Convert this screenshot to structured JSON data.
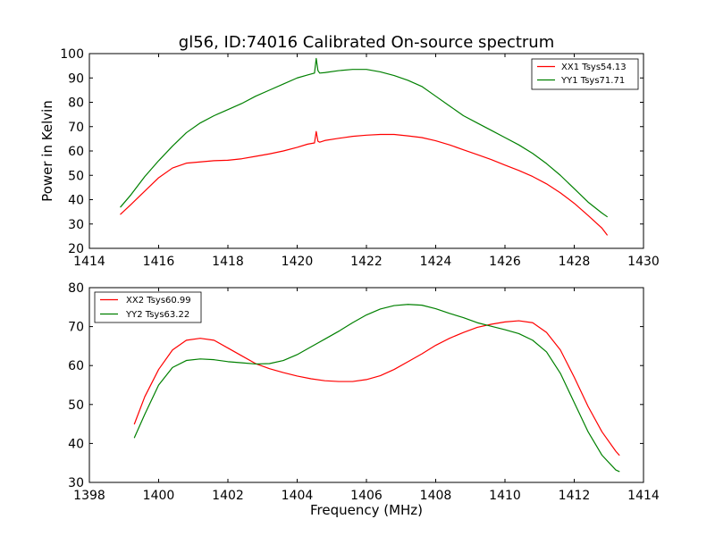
{
  "chart_data": [
    {
      "type": "line",
      "title": "gl56, ID:74016 Calibrated On-source spectrum",
      "xlabel": "",
      "ylabel": "Power in Kelvin",
      "xlim": [
        1414,
        1430
      ],
      "ylim": [
        20,
        100
      ],
      "xticks": [
        1414,
        1416,
        1418,
        1420,
        1422,
        1424,
        1426,
        1428,
        1430
      ],
      "yticks": [
        20,
        30,
        40,
        50,
        60,
        70,
        80,
        90,
        100
      ],
      "legend_position": "top-right",
      "series": [
        {
          "name": "XX1 Tsys54.13",
          "color": "#ff0000",
          "x": [
            1414.9,
            1415.2,
            1415.6,
            1416.0,
            1416.4,
            1416.8,
            1417.2,
            1417.6,
            1418.0,
            1418.4,
            1418.8,
            1419.2,
            1419.6,
            1420.0,
            1420.3,
            1420.5,
            1420.55,
            1420.6,
            1420.65,
            1420.8,
            1421.2,
            1421.6,
            1422.0,
            1422.4,
            1422.8,
            1423.2,
            1423.6,
            1424.0,
            1424.4,
            1424.8,
            1425.2,
            1425.6,
            1426.0,
            1426.4,
            1426.8,
            1427.2,
            1427.6,
            1428.0,
            1428.4,
            1428.8,
            1428.95
          ],
          "y": [
            34,
            38,
            43.5,
            49,
            53,
            55,
            55.5,
            56,
            56.2,
            56.8,
            57.8,
            58.8,
            60,
            61.5,
            62.8,
            63.3,
            68,
            64,
            63.6,
            64.3,
            65.2,
            66,
            66.5,
            66.8,
            66.8,
            66.2,
            65.5,
            64.2,
            62.5,
            60.5,
            58.5,
            56.5,
            54.2,
            52,
            49.5,
            46.5,
            42.8,
            38.5,
            33.5,
            28.3,
            25.5
          ]
        },
        {
          "name": "YY1 Tsys71.71",
          "color": "#008000",
          "x": [
            1414.9,
            1415.2,
            1415.6,
            1416.0,
            1416.4,
            1416.8,
            1417.2,
            1417.6,
            1418.0,
            1418.4,
            1418.8,
            1419.2,
            1419.6,
            1420.0,
            1420.3,
            1420.5,
            1420.55,
            1420.6,
            1420.65,
            1420.8,
            1421.2,
            1421.6,
            1422.0,
            1422.4,
            1422.8,
            1423.2,
            1423.6,
            1424.0,
            1424.4,
            1424.8,
            1425.2,
            1425.6,
            1426.0,
            1426.4,
            1426.8,
            1427.2,
            1427.6,
            1428.0,
            1428.4,
            1428.8,
            1428.95
          ],
          "y": [
            37,
            42,
            49.5,
            56,
            62,
            67.5,
            71.5,
            74.5,
            77,
            79.5,
            82.5,
            85,
            87.5,
            90,
            91.2,
            92,
            98,
            93,
            92,
            92.2,
            93,
            93.5,
            93.5,
            92.5,
            91,
            89,
            86.5,
            82.5,
            78.5,
            74.5,
            71.5,
            68.5,
            65.5,
            62.5,
            59,
            54.8,
            50,
            44.5,
            39,
            34.5,
            33
          ]
        }
      ]
    },
    {
      "type": "line",
      "title": "",
      "xlabel": "Frequency (MHz)",
      "ylabel": "",
      "xlim": [
        1398,
        1414
      ],
      "ylim": [
        30,
        80
      ],
      "xticks": [
        1398,
        1400,
        1402,
        1404,
        1406,
        1408,
        1410,
        1412,
        1414
      ],
      "yticks": [
        30,
        40,
        50,
        60,
        70,
        80
      ],
      "legend_position": "top-left",
      "series": [
        {
          "name": "XX2 Tsys60.99",
          "color": "#ff0000",
          "x": [
            1399.3,
            1399.6,
            1400.0,
            1400.4,
            1400.8,
            1401.2,
            1401.6,
            1402.0,
            1402.4,
            1402.8,
            1403.2,
            1403.6,
            1404.0,
            1404.4,
            1404.8,
            1405.2,
            1405.6,
            1406.0,
            1406.4,
            1406.8,
            1407.2,
            1407.6,
            1408.0,
            1408.4,
            1408.8,
            1409.2,
            1409.6,
            1410.0,
            1410.4,
            1410.8,
            1411.2,
            1411.6,
            1412.0,
            1412.4,
            1412.8,
            1413.2,
            1413.3
          ],
          "y": [
            45,
            52,
            59,
            64,
            66.5,
            67,
            66.5,
            64.5,
            62.5,
            60.5,
            59.2,
            58.2,
            57.3,
            56.6,
            56.1,
            55.9,
            55.9,
            56.4,
            57.4,
            59,
            61,
            63,
            65.2,
            67,
            68.5,
            69.8,
            70.6,
            71.2,
            71.5,
            71,
            68.5,
            64,
            57,
            49.5,
            43,
            38,
            37
          ]
        },
        {
          "name": "YY2 Tsys63.22",
          "color": "#008000",
          "x": [
            1399.3,
            1399.6,
            1400.0,
            1400.4,
            1400.8,
            1401.2,
            1401.6,
            1402.0,
            1402.4,
            1402.8,
            1403.2,
            1403.6,
            1404.0,
            1404.4,
            1404.8,
            1405.2,
            1405.6,
            1406.0,
            1406.4,
            1406.8,
            1407.2,
            1407.6,
            1408.0,
            1408.4,
            1408.8,
            1409.2,
            1409.6,
            1410.0,
            1410.4,
            1410.8,
            1411.2,
            1411.6,
            1412.0,
            1412.4,
            1412.8,
            1413.2,
            1413.3
          ],
          "y": [
            41.5,
            47.5,
            55,
            59.5,
            61.3,
            61.7,
            61.5,
            61,
            60.7,
            60.4,
            60.5,
            61.3,
            62.8,
            64.8,
            66.8,
            68.8,
            71,
            73,
            74.5,
            75.4,
            75.7,
            75.5,
            74.6,
            73.4,
            72.3,
            71,
            70.1,
            69.2,
            68.2,
            66.5,
            63.5,
            58,
            50.5,
            43,
            37,
            33.2,
            32.8
          ]
        }
      ]
    }
  ]
}
